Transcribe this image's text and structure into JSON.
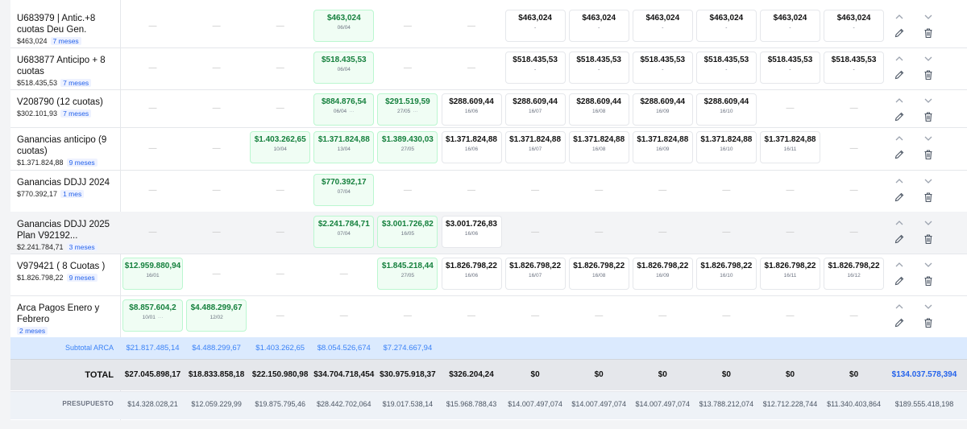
{
  "rows": [
    {
      "name": "U683979 | Antic.+8 cuotas Deu Gen.",
      "amount": "$463,024",
      "badge": "7 meses",
      "cells": [
        {
          "t": "dash"
        },
        {
          "t": "dash"
        },
        {
          "t": "dash"
        },
        {
          "t": "green",
          "v": "$463,024",
          "d": "06/04"
        },
        {
          "t": "dash"
        },
        {
          "t": "dash"
        },
        {
          "t": "white",
          "v": "$463,024",
          "d": "-"
        },
        {
          "t": "white",
          "v": "$463,024",
          "d": "-"
        },
        {
          "t": "white",
          "v": "$463,024",
          "d": "-"
        },
        {
          "t": "white",
          "v": "$463,024",
          "d": "-"
        },
        {
          "t": "white",
          "v": "$463,024",
          "d": "-"
        },
        {
          "t": "white",
          "v": "$463,024",
          "d": "-"
        }
      ]
    },
    {
      "name": "U683877 Anticipo + 8 cuotas",
      "amount": "$518.435,53",
      "badge": "7 meses",
      "cells": [
        {
          "t": "dash"
        },
        {
          "t": "dash"
        },
        {
          "t": "dash"
        },
        {
          "t": "green",
          "v": "$518.435,53",
          "d": "06/04"
        },
        {
          "t": "dash"
        },
        {
          "t": "dash"
        },
        {
          "t": "white",
          "v": "$518.435,53",
          "d": "-"
        },
        {
          "t": "white",
          "v": "$518.435,53",
          "d": "-"
        },
        {
          "t": "white",
          "v": "$518.435,53",
          "d": "-"
        },
        {
          "t": "white",
          "v": "$518.435,53",
          "d": "-"
        },
        {
          "t": "white",
          "v": "$518.435,53",
          "d": "-"
        },
        {
          "t": "white",
          "v": "$518.435,53",
          "d": "-"
        }
      ]
    },
    {
      "name": "V208790 (12 cuotas)",
      "amount": "$302.101,93",
      "badge": "7 meses",
      "cells": [
        {
          "t": "dash"
        },
        {
          "t": "dash"
        },
        {
          "t": "dash"
        },
        {
          "t": "green",
          "v": "$884.876,54",
          "d": "06/04",
          "dots": "···"
        },
        {
          "t": "green",
          "v": "$291.519,59",
          "d": "27/05",
          "dots": "···"
        },
        {
          "t": "white",
          "v": "$288.609,44",
          "d": "16/06"
        },
        {
          "t": "white",
          "v": "$288.609,44",
          "d": "16/07"
        },
        {
          "t": "white",
          "v": "$288.609,44",
          "d": "16/08"
        },
        {
          "t": "white",
          "v": "$288.609,44",
          "d": "16/09"
        },
        {
          "t": "white",
          "v": "$288.609,44",
          "d": "16/10"
        },
        {
          "t": "dash"
        },
        {
          "t": "dash"
        }
      ]
    },
    {
      "name": "Ganancias anticipo (9 cuotas)",
      "amount": "$1.371.824,88",
      "badge": "9 meses",
      "cells": [
        {
          "t": "dash"
        },
        {
          "t": "dash"
        },
        {
          "t": "green",
          "v": "$1.403.262,65",
          "d": "10/04"
        },
        {
          "t": "green",
          "v": "$1.371.824,88",
          "d": "13/04"
        },
        {
          "t": "green",
          "v": "$1.389.430,03",
          "d": "27/05"
        },
        {
          "t": "white",
          "v": "$1.371.824,88",
          "d": "16/06"
        },
        {
          "t": "white",
          "v": "$1.371.824,88",
          "d": "16/07"
        },
        {
          "t": "white",
          "v": "$1.371.824,88",
          "d": "16/08"
        },
        {
          "t": "white",
          "v": "$1.371.824,88",
          "d": "16/09"
        },
        {
          "t": "white",
          "v": "$1.371.824,88",
          "d": "16/10"
        },
        {
          "t": "white",
          "v": "$1.371.824,88",
          "d": "16/11"
        },
        {
          "t": "dash"
        }
      ]
    },
    {
      "name": "Ganancias DDJJ 2024",
      "amount": "$770.392,17",
      "badge": "1 mes",
      "cells": [
        {
          "t": "dash"
        },
        {
          "t": "dash"
        },
        {
          "t": "dash"
        },
        {
          "t": "green",
          "v": "$770.392,17",
          "d": "07/04"
        },
        {
          "t": "dash"
        },
        {
          "t": "dash"
        },
        {
          "t": "dash"
        },
        {
          "t": "dash"
        },
        {
          "t": "dash"
        },
        {
          "t": "dash"
        },
        {
          "t": "dash"
        },
        {
          "t": "dash"
        }
      ]
    },
    {
      "name": "Ganancias DDJJ 2025 Plan V92192...",
      "amount": "$2.241.784,71",
      "badge": "3 meses",
      "hl": true,
      "cells": [
        {
          "t": "dash"
        },
        {
          "t": "dash"
        },
        {
          "t": "dash"
        },
        {
          "t": "green",
          "v": "$2.241.784,71",
          "d": "07/04"
        },
        {
          "t": "green",
          "v": "$3.001.726,82",
          "d": "16/05"
        },
        {
          "t": "white",
          "v": "$3.001.726,83",
          "d": "16/06"
        },
        {
          "t": "dash"
        },
        {
          "t": "dash"
        },
        {
          "t": "dash"
        },
        {
          "t": "dash"
        },
        {
          "t": "dash"
        },
        {
          "t": "dash"
        }
      ]
    },
    {
      "name": "V979421 ( 8 Cuotas )",
      "amount": "$1.826.798,22",
      "badge": "9 meses",
      "cells": [
        {
          "t": "green",
          "v": "$12.959.880,94",
          "d": "16/01"
        },
        {
          "t": "dash"
        },
        {
          "t": "dash"
        },
        {
          "t": "dash"
        },
        {
          "t": "green",
          "v": "$1.845.218,44",
          "d": "27/05"
        },
        {
          "t": "white",
          "v": "$1.826.798,22",
          "d": "16/06"
        },
        {
          "t": "white",
          "v": "$1.826.798,22",
          "d": "16/07"
        },
        {
          "t": "white",
          "v": "$1.826.798,22",
          "d": "16/08"
        },
        {
          "t": "white",
          "v": "$1.826.798,22",
          "d": "16/09"
        },
        {
          "t": "white",
          "v": "$1.826.798,22",
          "d": "16/10"
        },
        {
          "t": "white",
          "v": "$1.826.798,22",
          "d": "16/11"
        },
        {
          "t": "white",
          "v": "$1.826.798,22",
          "d": "16/12"
        }
      ]
    },
    {
      "name": "Arca Pagos Enero y Febrero",
      "amount": "",
      "badge": "2 meses",
      "cells": [
        {
          "t": "green",
          "v": "$8.857.604,2",
          "d": "10/01",
          "dots": "···"
        },
        {
          "t": "green",
          "v": "$4.488.299,67",
          "d": "12/02"
        },
        {
          "t": "dash"
        },
        {
          "t": "dash"
        },
        {
          "t": "dash"
        },
        {
          "t": "dash"
        },
        {
          "t": "dash"
        },
        {
          "t": "dash"
        },
        {
          "t": "dash"
        },
        {
          "t": "dash"
        },
        {
          "t": "dash"
        },
        {
          "t": "dash"
        }
      ]
    }
  ],
  "subtotal": {
    "label": "Subtotal ARCA",
    "values": [
      "$21.817.485,14",
      "$4.488.299,67",
      "$1.403.262,65",
      "$8.054.526,674",
      "$7.274.667,94",
      "",
      "",
      "",
      "",
      "",
      "",
      ""
    ]
  },
  "total": {
    "label": "TOTAL",
    "values": [
      "$27.045.898,17",
      "$18.833.858,18",
      "$22.150.980,98",
      "$34.704.718,454",
      "$30.975.918,37",
      "$326.204,24",
      "$0",
      "$0",
      "$0",
      "$0",
      "$0",
      "$0"
    ],
    "grand": "$134.037.578,394"
  },
  "budget": {
    "label": "PRESUPUESTO",
    "values": [
      "$14.328.028,21",
      "$12.059.229,99",
      "$19.875.795,46",
      "$28.442.702,064",
      "$19.017.538,14",
      "$15.968.788,43",
      "$14.007.497,074",
      "$14.007.497,074",
      "$14.007.497,074",
      "$13.788.212,074",
      "$12.712.228,744",
      "$11.340.403,864"
    ],
    "grand": "$189.555.418,198"
  },
  "icons": {
    "up": "chevron-up-icon",
    "down": "chevron-down-icon",
    "edit": "pencil-icon",
    "delete": "trash-icon"
  },
  "colors": {
    "paid": "#15803d",
    "paid_bg": "#f0fdf4",
    "subtotal": "#3b82f6",
    "grand_total": "#2563eb"
  }
}
